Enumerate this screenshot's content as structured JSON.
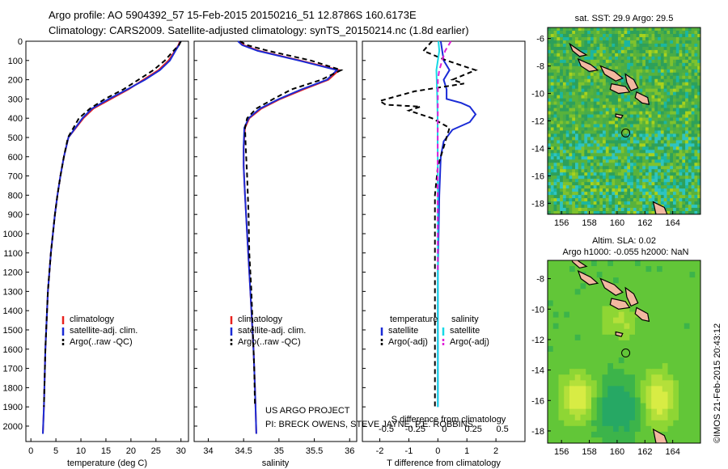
{
  "header": {
    "line1": "Argo profile: AO 5904392_57 15-Feb-2015 20150216_51 12.8786S 160.6173E",
    "line2": "Climatology: CARS2009. Satellite-adjusted climatology: synTS_20150214.nc (1.8d earlier)"
  },
  "credits": {
    "project": "US ARGO PROJECT",
    "pi": "PI: BRECK OWENS, STEVE JAYNE, P.E. ROBBINS",
    "stamp": "©IMOS 21-Feb-2015 20:43:12"
  },
  "colors": {
    "climatology": "#e8221e",
    "satellite": "#1a2bd6",
    "argo": "#000000",
    "sat_salinity": "#16d8e6",
    "argo_salinity": "#e020d8"
  },
  "chart_data": [
    {
      "type": "line",
      "id": "temperature",
      "xlabel": "temperature (deg C)",
      "ylabel": "",
      "xlim": [
        -1,
        31.5
      ],
      "ylim": [
        2080,
        0
      ],
      "xticks": [
        0,
        5,
        10,
        15,
        20,
        25,
        30
      ],
      "yticks": [
        0,
        100,
        200,
        300,
        400,
        500,
        600,
        700,
        800,
        900,
        1000,
        1100,
        1200,
        1300,
        1400,
        1500,
        1600,
        1700,
        1800,
        1900,
        2000
      ],
      "legend": [
        "climatology",
        "satellite-adj. clim.",
        "Argo(..raw -QC)"
      ],
      "series": [
        {
          "name": "climatology",
          "x": [
            29.8,
            29.5,
            28.8,
            27.5,
            25.5,
            22.5,
            19.5,
            16.0,
            12.5,
            10.5,
            9.0,
            7.5,
            6.6,
            5.9,
            5.3,
            4.8,
            4.4,
            4.0,
            3.4,
            2.9,
            2.6,
            2.4
          ],
          "y": [
            0,
            20,
            50,
            100,
            150,
            200,
            250,
            300,
            350,
            400,
            450,
            500,
            600,
            700,
            800,
            900,
            1000,
            1100,
            1300,
            1600,
            1900,
            2040
          ]
        },
        {
          "name": "satellite-adj. clim.",
          "x": [
            29.9,
            29.6,
            28.9,
            27.8,
            25.8,
            22.8,
            19.3,
            15.6,
            12.2,
            10.3,
            8.9,
            7.5,
            6.6,
            5.9,
            5.3,
            4.8,
            4.4,
            4.0,
            3.4,
            2.9,
            2.6,
            2.4
          ],
          "y": [
            0,
            20,
            50,
            100,
            150,
            200,
            250,
            300,
            350,
            400,
            450,
            500,
            600,
            700,
            800,
            900,
            1000,
            1100,
            1300,
            1600,
            1900,
            2040
          ]
        },
        {
          "name": "Argo(..raw -QC)",
          "x": [
            30.0,
            29.6,
            28.5,
            26.8,
            24.5,
            21.5,
            18.5,
            14.8,
            11.8,
            9.6,
            8.5,
            7.4,
            6.6,
            5.9,
            5.3,
            4.8,
            4.4,
            4.0,
            3.4,
            2.9,
            2.6
          ],
          "y": [
            0,
            20,
            50,
            100,
            150,
            200,
            250,
            300,
            350,
            400,
            450,
            500,
            600,
            700,
            800,
            900,
            1000,
            1100,
            1300,
            1600,
            1900
          ]
        }
      ]
    },
    {
      "type": "line",
      "id": "salinity",
      "xlabel": "salinity",
      "ylabel": "",
      "xlim": [
        33.8,
        36.1
      ],
      "ylim": [
        2080,
        0
      ],
      "xticks": [
        34,
        34.5,
        35,
        35.5,
        36
      ],
      "legend": [
        "climatology",
        "satellite-adj. clim.",
        "Argo(..raw -QC)"
      ],
      "series": [
        {
          "name": "climatology",
          "x": [
            34.45,
            34.5,
            34.72,
            35.3,
            35.85,
            35.7,
            35.35,
            35.02,
            34.75,
            34.58,
            34.52,
            34.5,
            34.5,
            34.52,
            34.55,
            34.58,
            34.61,
            34.64,
            34.66,
            34.68
          ],
          "y": [
            0,
            20,
            50,
            100,
            150,
            200,
            250,
            300,
            350,
            400,
            450,
            550,
            650,
            800,
            1000,
            1200,
            1400,
            1600,
            1800,
            2040
          ]
        },
        {
          "name": "satellite-adj. clim.",
          "x": [
            34.42,
            34.48,
            34.7,
            35.28,
            35.82,
            35.68,
            35.32,
            35.0,
            34.73,
            34.57,
            34.51,
            34.5,
            34.5,
            34.52,
            34.55,
            34.58,
            34.61,
            34.64,
            34.66,
            34.68
          ],
          "y": [
            0,
            20,
            50,
            100,
            150,
            200,
            250,
            300,
            350,
            400,
            450,
            550,
            650,
            800,
            1000,
            1200,
            1400,
            1600,
            1800,
            2040
          ]
        },
        {
          "name": "Argo(..raw -QC)",
          "x": [
            34.45,
            34.55,
            34.85,
            35.45,
            35.88,
            35.6,
            35.18,
            34.92,
            34.68,
            34.55,
            34.52,
            34.53,
            34.55,
            34.57,
            34.58,
            34.61,
            34.63,
            34.65,
            34.66
          ],
          "y": [
            0,
            20,
            50,
            100,
            150,
            200,
            250,
            300,
            350,
            400,
            450,
            550,
            700,
            900,
            1100,
            1300,
            1500,
            1700,
            1900
          ]
        }
      ]
    },
    {
      "type": "line",
      "id": "difference",
      "xlabel": "T difference from climatology",
      "title": "S difference from climatology",
      "xlim": [
        -2.6,
        3
      ],
      "ylim": [
        2080,
        0
      ],
      "xticks": [
        -2,
        -1,
        0,
        1,
        2
      ],
      "xticks_top": [
        -0.5,
        -0.25,
        0,
        0.25,
        0.5
      ],
      "legend_groups": [
        {
          "title": "temperature",
          "items": [
            "satellite",
            "Argo(-adj)"
          ]
        },
        {
          "title": "salinity",
          "items": [
            "satellite",
            "Argo(-adj)"
          ]
        }
      ],
      "series": [
        {
          "name": "satellite",
          "x": [
            0.1,
            0.15,
            0.2,
            0.4,
            0.2,
            0.3,
            0.3,
            0.8,
            1.1,
            1.3,
            1.1,
            0.5,
            0.2,
            0.1,
            0.05,
            0.0,
            0.0
          ],
          "y": [
            0,
            50,
            100,
            150,
            200,
            250,
            300,
            320,
            340,
            380,
            420,
            460,
            520,
            600,
            800,
            1200,
            1900
          ]
        },
        {
          "name": "Argo(-adj)",
          "x": [
            -0.2,
            -0.5,
            0.3,
            1.3,
            0.5,
            0.9,
            -0.8,
            -2.0,
            -1.8,
            -0.6,
            -1.0,
            -0.2,
            0.4,
            0.2,
            0.0,
            -0.1,
            -0.1,
            -0.1,
            -0.1
          ],
          "y": [
            0,
            50,
            100,
            150,
            200,
            220,
            260,
            310,
            330,
            340,
            360,
            400,
            450,
            550,
            650,
            800,
            1000,
            1300,
            1900
          ]
        },
        {
          "name": "satellite",
          "x": [
            0.02,
            0.05,
            0.0,
            -0.05,
            -0.04,
            -0.02,
            -0.01,
            -0.01,
            0.0,
            0.0,
            0.0
          ],
          "y": [
            0,
            50,
            100,
            150,
            200,
            300,
            400,
            500,
            700,
            1000,
            1900
          ]
        },
        {
          "name": "Argo(-adj)",
          "x": [
            0.45,
            0.25,
            0.15,
            0.05,
            0.0,
            0.0,
            -0.01,
            0.0
          ],
          "y": [
            0,
            50,
            100,
            150,
            200,
            300,
            700,
            1200
          ]
        }
      ]
    },
    {
      "type": "heatmap",
      "id": "sst-map",
      "title": "sat. SST: 29.9  Argo: 29.5",
      "xticks": [
        156,
        158,
        160,
        162,
        164
      ],
      "yticks": [
        -6,
        -8,
        -10,
        -12,
        -14,
        -16,
        -18
      ],
      "xlim": [
        155,
        166
      ],
      "ylim": [
        -18.8,
        -5.2
      ],
      "marker": {
        "lon": 160.62,
        "lat": -12.88
      }
    },
    {
      "type": "heatmap",
      "id": "sla-map",
      "title": "Altim. SLA: 0.02",
      "subtitle": "Argo h1000: -0.055  h2000: NaN",
      "xticks": [
        156,
        158,
        160,
        162,
        164
      ],
      "yticks": [
        -8,
        -10,
        -12,
        -14,
        -16,
        -18
      ],
      "xlim": [
        155,
        166
      ],
      "ylim": [
        -18.8,
        -6.8
      ],
      "marker": {
        "lon": 160.62,
        "lat": -12.88
      }
    }
  ]
}
